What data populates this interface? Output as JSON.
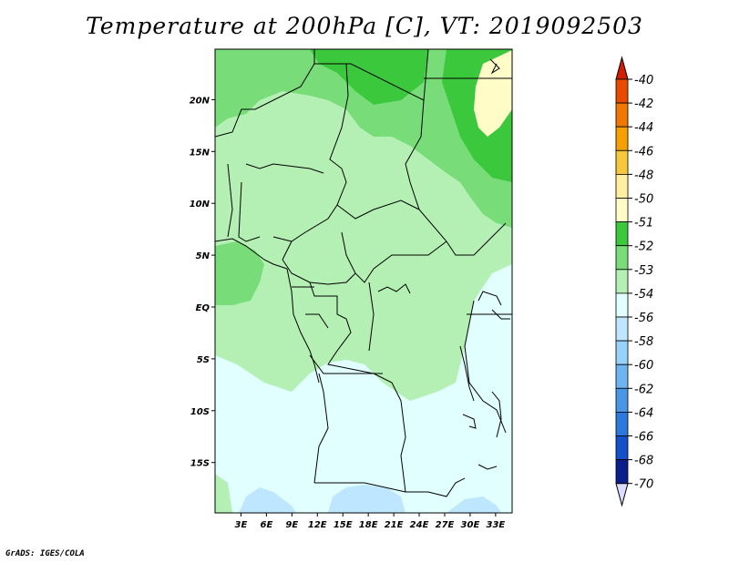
{
  "title": "Temperature at 200hPa [C], VT: 2019092503",
  "credit": "GrADS: IGES/COLA",
  "map": {
    "region": "Central Africa",
    "lon_range": [
      0,
      35
    ],
    "lat_range": [
      -20,
      25
    ],
    "lat_ticks": [
      {
        "value": 20,
        "label": "20N"
      },
      {
        "value": 15,
        "label": "15N"
      },
      {
        "value": 10,
        "label": "10N"
      },
      {
        "value": 5,
        "label": "5N"
      },
      {
        "value": 0,
        "label": "EQ"
      },
      {
        "value": -5,
        "label": "5S"
      },
      {
        "value": -10,
        "label": "10S"
      },
      {
        "value": -15,
        "label": "15S"
      }
    ],
    "lon_ticks": [
      {
        "value": 3,
        "label": "3E"
      },
      {
        "value": 6,
        "label": "6E"
      },
      {
        "value": 9,
        "label": "9E"
      },
      {
        "value": 12,
        "label": "12E"
      },
      {
        "value": 15,
        "label": "15E"
      },
      {
        "value": 18,
        "label": "18E"
      },
      {
        "value": 21,
        "label": "21E"
      },
      {
        "value": 24,
        "label": "24E"
      },
      {
        "value": 27,
        "label": "27E"
      },
      {
        "value": 30,
        "label": "30E"
      },
      {
        "value": 33,
        "label": "33E"
      }
    ]
  },
  "colorbar": {
    "levels": [
      "-40",
      "-42",
      "-44",
      "-46",
      "-48",
      "-50",
      "-51",
      "-52",
      "-53",
      "-54",
      "-56",
      "-58",
      "-60",
      "-62",
      "-64",
      "-66",
      "-68",
      "-70"
    ],
    "colors": [
      "#d21e00",
      "#e84b00",
      "#f07800",
      "#f5a000",
      "#f8c83c",
      "#fff0a0",
      "#fffcc8",
      "#3cc83c",
      "#78dc78",
      "#b4f0b4",
      "#e0fffe",
      "#bee6ff",
      "#96d2fa",
      "#6eb4f0",
      "#4a96e6",
      "#2c78dc",
      "#1450c8",
      "#0a1e8c",
      "#000064",
      "#dcdcff"
    ]
  }
}
